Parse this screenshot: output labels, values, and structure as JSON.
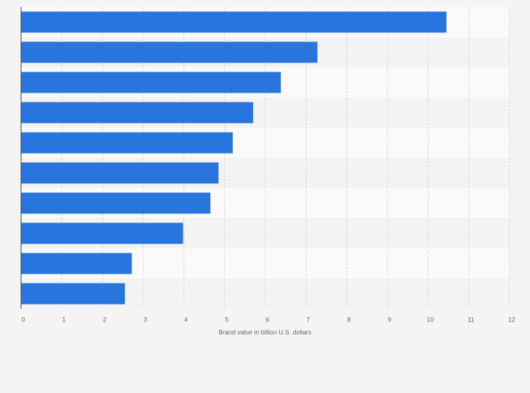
{
  "chart_data": {
    "type": "bar",
    "orientation": "horizontal",
    "x_label": "Brand value in billion U.S. dollars",
    "categories": [
      null,
      null,
      null,
      null,
      null,
      null,
      null,
      null,
      null,
      null
    ],
    "values": [
      10.45,
      7.28,
      6.38,
      5.7,
      5.2,
      4.85,
      4.65,
      3.98,
      2.72,
      2.55
    ],
    "color": "#2876dd",
    "xlim": [
      0,
      12
    ],
    "xticks": [
      0,
      1,
      2,
      3,
      4,
      5,
      6,
      7,
      8,
      9,
      10,
      11,
      12
    ],
    "grid": true
  }
}
